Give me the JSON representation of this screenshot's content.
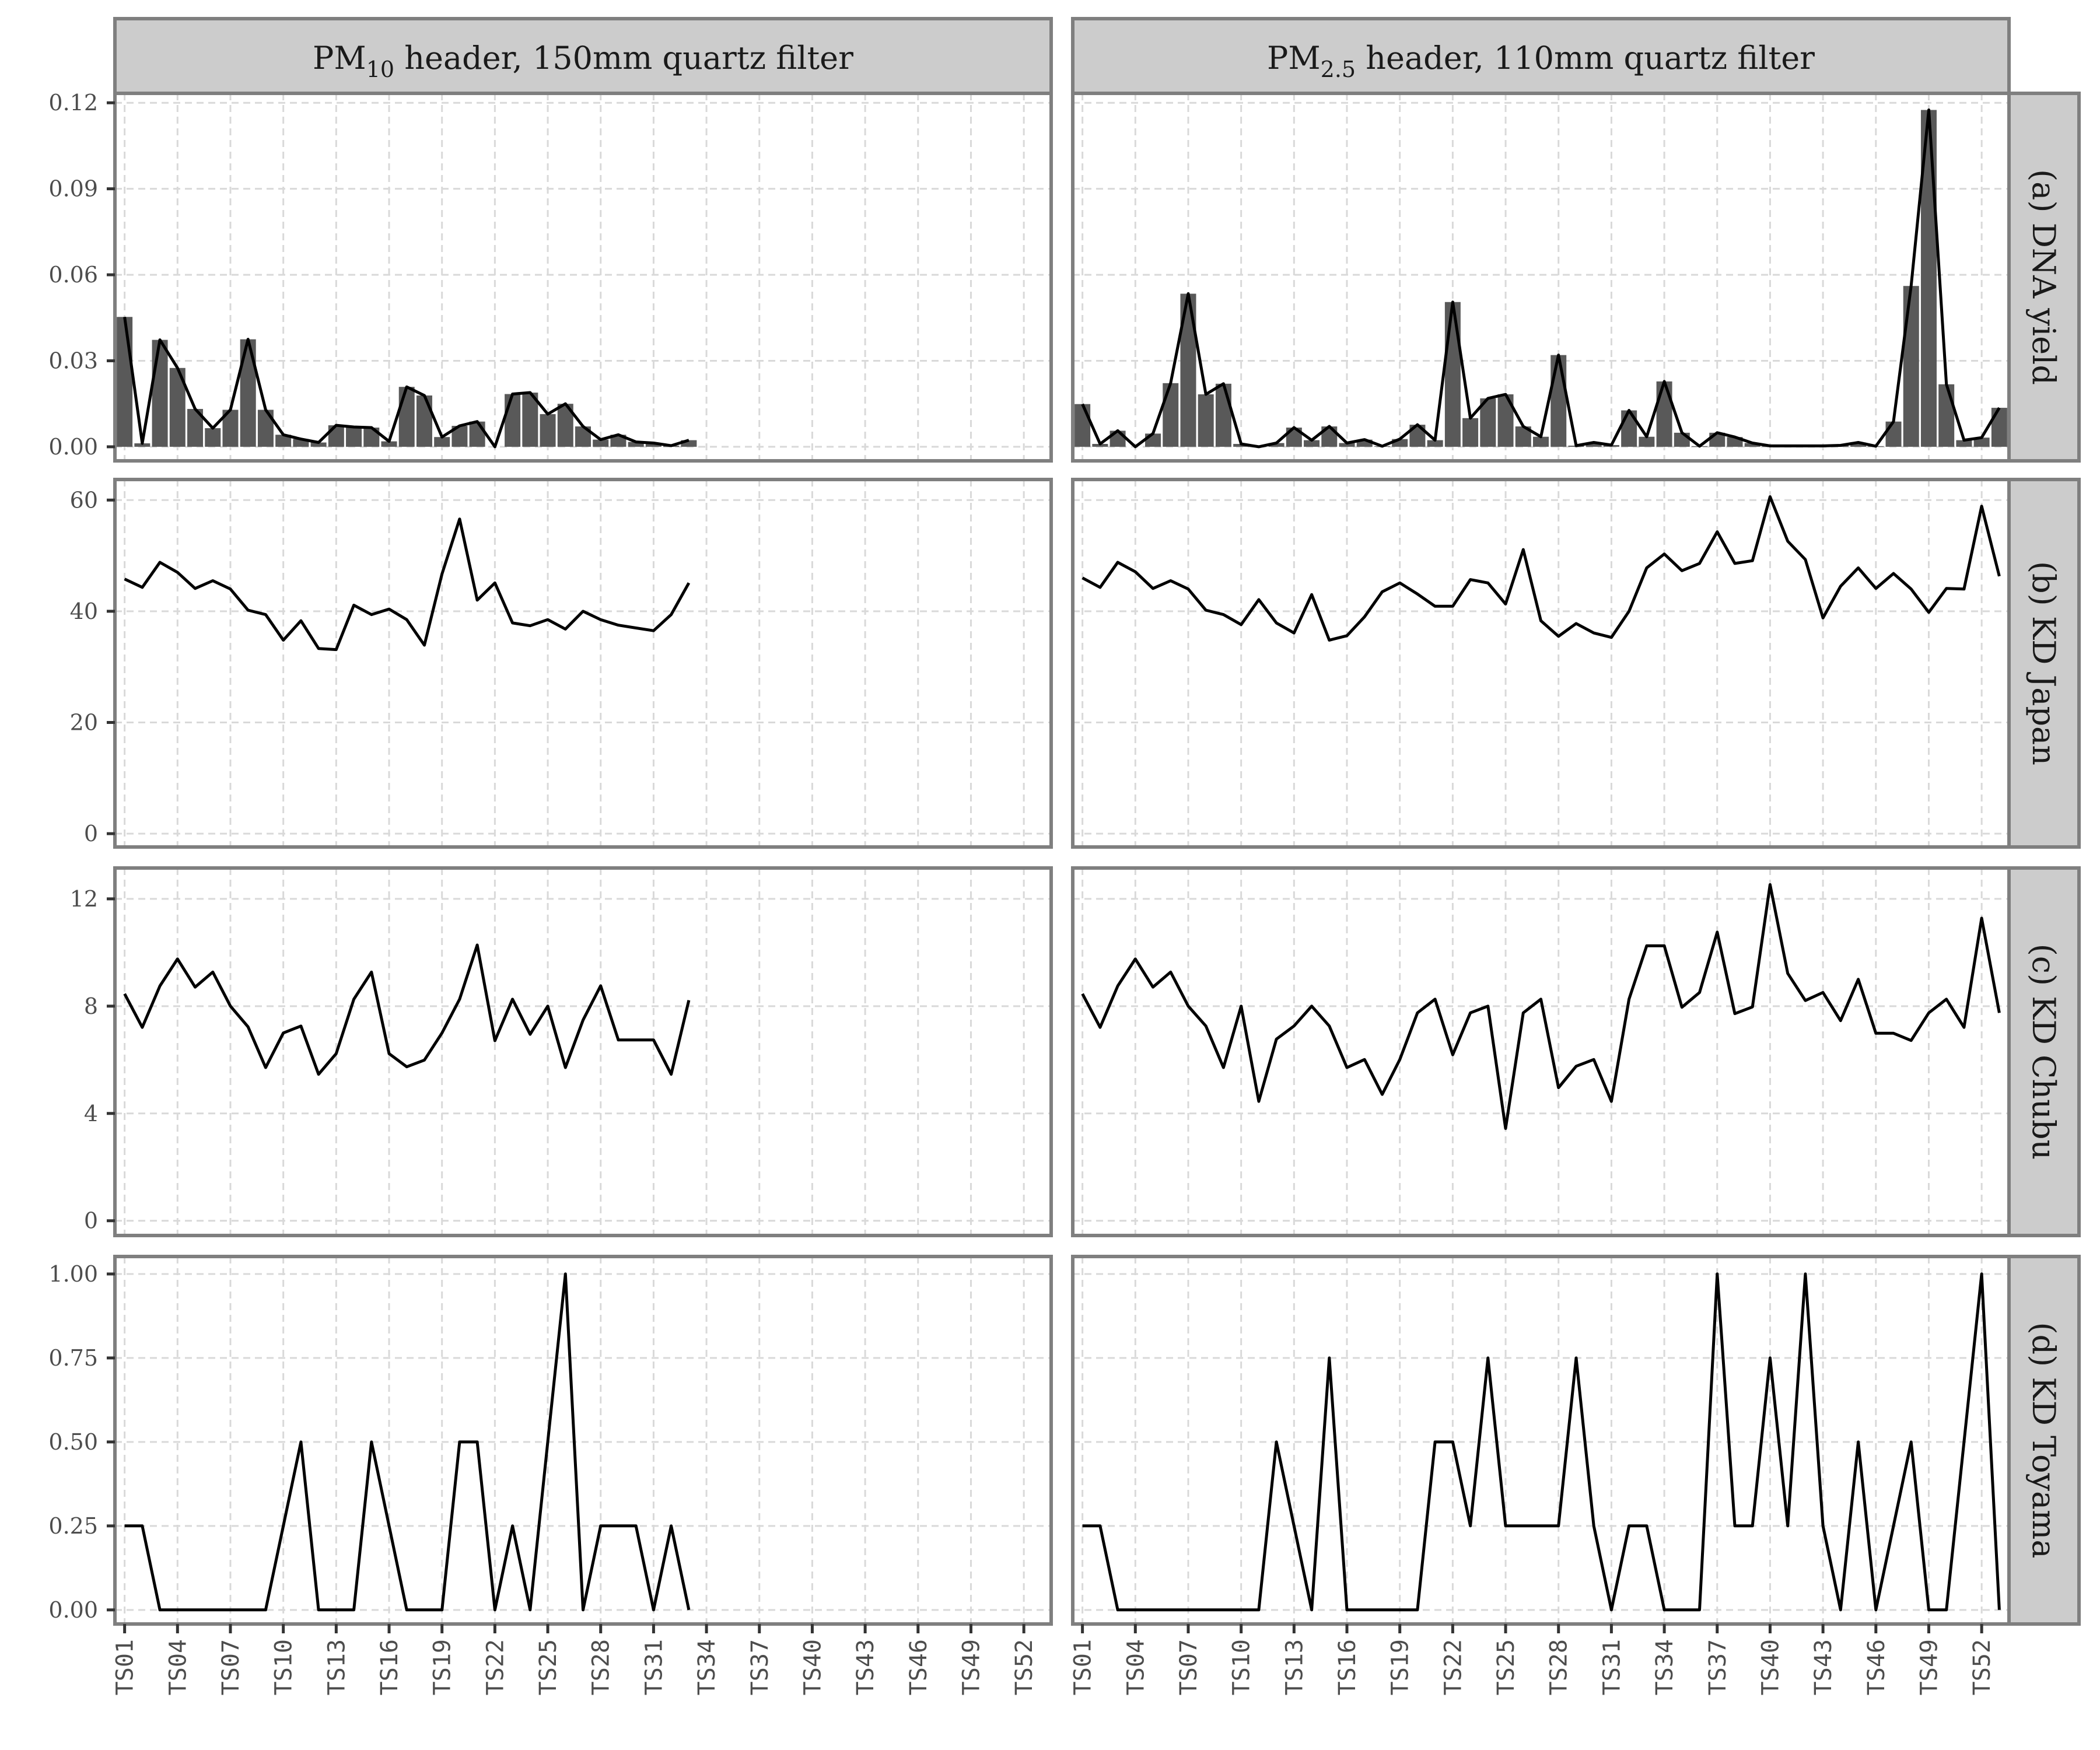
{
  "chart_data": {
    "type": "bar+line",
    "grid": true,
    "columns": [
      {
        "id": "pm10",
        "label_main": "PM",
        "label_sub": "10",
        "label_rest": " header, 150mm quartz filter"
      },
      {
        "id": "pm25",
        "label_main": "PM",
        "label_sub": "2.5",
        "label_rest": " header, 110mm quartz filter"
      }
    ],
    "rows": [
      {
        "id": "dna_yield",
        "label": "(a) DNA yield",
        "ylim": [
          -0.0049,
          0.1233
        ],
        "y_ticks": [
          0,
          0.03,
          0.06,
          0.09,
          0.12
        ],
        "y_tick_labels": [
          "0.00",
          "0.03",
          "0.06",
          "0.09",
          "0.12"
        ],
        "bars": true
      },
      {
        "id": "kd_japan",
        "label": "(b) KD Japan",
        "ylim": [
          -2.4,
          63.7
        ],
        "y_ticks": [
          0,
          20,
          40,
          60
        ],
        "y_tick_labels": [
          "0",
          "20",
          "40",
          "60"
        ],
        "bars": false
      },
      {
        "id": "kd_chubu",
        "label": "(c) KD Chubu",
        "ylim": [
          -0.55,
          13.15
        ],
        "y_ticks": [
          0,
          4,
          8,
          12
        ],
        "y_tick_labels": [
          "0",
          "4",
          "8",
          "12"
        ],
        "bars": false
      },
      {
        "id": "kd_toyama",
        "label": "(d) KD Toyama",
        "ylim": [
          -0.042,
          1.052
        ],
        "y_ticks": [
          0,
          0.25,
          0.5,
          0.75,
          1.0
        ],
        "y_tick_labels": [
          "0.00",
          "0.25",
          "0.50",
          "0.75",
          "1.00"
        ],
        "bars": false
      }
    ],
    "x_categories": [
      "TS01",
      "TS02",
      "TS03",
      "TS04",
      "TS05",
      "TS06",
      "TS07",
      "TS08",
      "TS09",
      "TS10",
      "TS11",
      "TS12",
      "TS13",
      "TS14",
      "TS15",
      "TS16",
      "TS17",
      "TS18",
      "TS19",
      "TS20",
      "TS21",
      "TS22",
      "TS23",
      "TS24",
      "TS25",
      "TS26",
      "TS27",
      "TS28",
      "TS29",
      "TS30",
      "TS31",
      "TS32",
      "TS33",
      "TS34",
      "TS35",
      "TS36",
      "TS37",
      "TS38",
      "TS39",
      "TS40",
      "TS41",
      "TS42",
      "TS43",
      "TS44",
      "TS45",
      "TS46",
      "TS47",
      "TS48",
      "TS49",
      "TS50",
      "TS51",
      "TS52",
      "TS53"
    ],
    "x_tick_labels": [
      "TS01",
      "TS04",
      "TS07",
      "TS10",
      "TS13",
      "TS16",
      "TS19",
      "TS22",
      "TS25",
      "TS28",
      "TS31",
      "TS34",
      "TS37",
      "TS40",
      "TS43",
      "TS46",
      "TS49",
      "TS52"
    ],
    "series": {
      "pm10": {
        "dna_yield": [
          0.0453,
          0.0012,
          0.0373,
          0.0275,
          0.0132,
          0.0065,
          0.0129,
          0.0375,
          0.0129,
          0.0042,
          0.0027,
          0.0015,
          0.0075,
          0.0069,
          0.0067,
          0.0019,
          0.0209,
          0.0179,
          0.0034,
          0.0073,
          0.0088,
          0.0,
          0.0184,
          0.0189,
          0.0114,
          0.015,
          0.0071,
          0.0025,
          0.0042,
          0.0017,
          0.0013,
          0.0004,
          0.0023
        ],
        "kd_japan": [
          45.8,
          44.3,
          48.8,
          47.0,
          44.1,
          45.5,
          44.0,
          40.2,
          39.4,
          34.8,
          38.3,
          33.3,
          33.1,
          41.1,
          39.4,
          40.4,
          38.5,
          33.9,
          46.7,
          56.6,
          42.0,
          45.1,
          37.9,
          37.4,
          38.5,
          36.8,
          40.0,
          38.5,
          37.5,
          37.0,
          36.5,
          39.4,
          45.1
        ],
        "kd_chubu": [
          8.46,
          7.21,
          8.75,
          9.76,
          8.71,
          9.27,
          8.0,
          7.23,
          5.71,
          7.0,
          7.26,
          5.46,
          6.23,
          8.26,
          9.27,
          6.23,
          5.74,
          5.99,
          7.0,
          8.26,
          10.28,
          6.71,
          8.26,
          6.95,
          8.0,
          5.71,
          7.48,
          8.76,
          6.74,
          6.74,
          6.74,
          5.46,
          8.22
        ],
        "kd_toyama": [
          0.25,
          0.25,
          0,
          0,
          0,
          0,
          0,
          0,
          0,
          0.25,
          0.5,
          0,
          0,
          0,
          0.5,
          0.25,
          0,
          0,
          0,
          0.5,
          0.5,
          0,
          0.25,
          0,
          0.5,
          1,
          0,
          0.25,
          0.25,
          0.25,
          0,
          0.25,
          0
        ]
      },
      "pm25": {
        "dna_yield": [
          0.0149,
          0.001,
          0.0056,
          0.0,
          0.0046,
          0.0222,
          0.0534,
          0.0183,
          0.022,
          0.001,
          0.0,
          0.0013,
          0.0067,
          0.0023,
          0.0071,
          0.0013,
          0.0025,
          0.0002,
          0.0027,
          0.0077,
          0.0023,
          0.0505,
          0.01,
          0.0169,
          0.0183,
          0.0071,
          0.0035,
          0.032,
          0.0004,
          0.0015,
          0.0006,
          0.0127,
          0.0035,
          0.0228,
          0.0049,
          0.0002,
          0.0049,
          0.0034,
          0.0013,
          0.0003,
          0.0003,
          0.0003,
          0.0003,
          0.0005,
          0.0015,
          0.0002,
          0.0088,
          0.0561,
          0.1175,
          0.0218,
          0.0023,
          0.0032,
          0.0136
        ],
        "kd_japan": [
          46.0,
          44.3,
          48.8,
          47.1,
          44.1,
          45.5,
          44.0,
          40.2,
          39.4,
          37.6,
          42.1,
          37.9,
          36.1,
          43.0,
          34.8,
          35.6,
          39.0,
          43.5,
          45.1,
          43.1,
          40.9,
          40.9,
          45.7,
          45.1,
          41.3,
          51.1,
          38.3,
          35.5,
          37.8,
          36.1,
          35.3,
          40.0,
          47.8,
          50.3,
          47.3,
          48.6,
          54.3,
          48.6,
          49.1,
          60.6,
          52.6,
          49.3,
          38.8,
          44.5,
          47.8,
          44.1,
          46.8,
          44.0,
          39.8,
          44.1,
          44.0,
          58.9,
          46.3
        ],
        "kd_chubu": [
          8.46,
          7.21,
          8.75,
          9.76,
          8.71,
          9.27,
          8.0,
          7.26,
          5.71,
          8.0,
          4.45,
          6.77,
          7.26,
          8.0,
          7.26,
          5.71,
          6.01,
          4.71,
          6.01,
          7.75,
          8.26,
          6.19,
          7.75,
          8.0,
          3.44,
          7.75,
          8.26,
          4.96,
          5.76,
          6.01,
          4.45,
          8.26,
          10.25,
          10.25,
          7.96,
          8.51,
          10.76,
          7.72,
          7.97,
          12.53,
          9.22,
          8.21,
          8.51,
          7.46,
          9.0,
          6.99,
          6.99,
          6.72,
          7.75,
          8.26,
          7.21,
          11.28,
          7.75
        ],
        "kd_toyama": [
          0.25,
          0.25,
          0,
          0,
          0,
          0,
          0,
          0,
          0,
          0,
          0,
          0.5,
          0.25,
          0,
          0.75,
          0,
          0,
          0,
          0,
          0,
          0.5,
          0.5,
          0.25,
          0.75,
          0.25,
          0.25,
          0.25,
          0.25,
          0.75,
          0.25,
          0,
          0.25,
          0.25,
          0,
          0,
          0,
          1,
          0.25,
          0.25,
          0.75,
          0.25,
          1,
          0.25,
          0,
          0.5,
          0,
          0.25,
          0.5,
          0,
          0,
          0.5,
          1,
          0
        ]
      }
    },
    "colors": {
      "bar": "#595959",
      "line": "#000000",
      "strip_bg": "#cccccc",
      "border": "#7f7f7f",
      "grid": "#d9d9d9",
      "tick_text": "#4d4d4d"
    }
  }
}
